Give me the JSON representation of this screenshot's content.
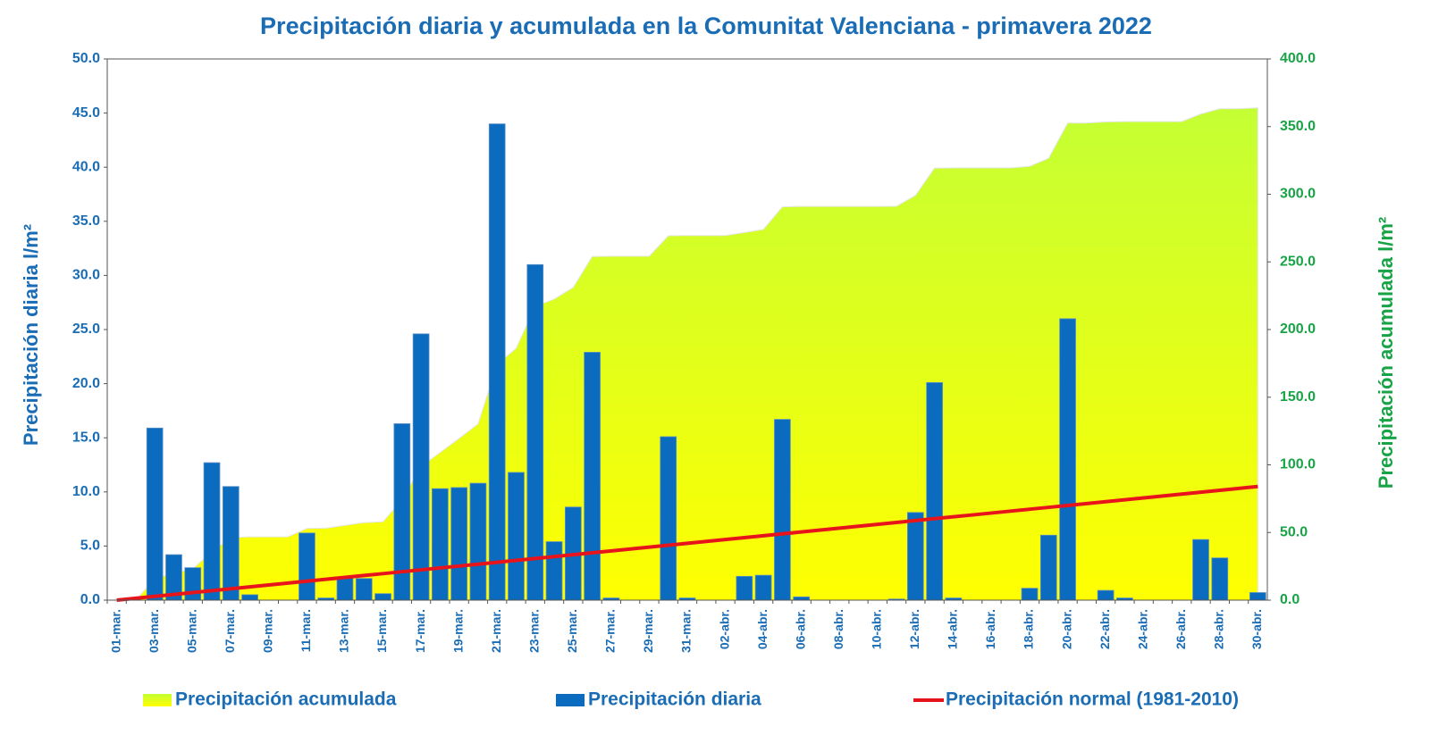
{
  "chart_data": {
    "type": "combo",
    "title": "Precipitación diaria y acumulada en la Comunitat Valenciana - primavera 2022",
    "y_label": "Precipitación  diaria l/m²",
    "y2_label": "Precipitación acumulada l/m²",
    "categories": [
      "01-mar.",
      null,
      "03-mar.",
      null,
      "05-mar.",
      null,
      "07-mar.",
      null,
      "09-mar.",
      null,
      "11-mar.",
      null,
      "13-mar.",
      null,
      "15-mar.",
      null,
      "17-mar.",
      null,
      "19-mar.",
      null,
      "21-mar.",
      null,
      "23-mar.",
      null,
      "25-mar.",
      null,
      "27-mar.",
      null,
      "29-mar.",
      null,
      "31-mar.",
      null,
      "02-abr.",
      null,
      "04-abr.",
      null,
      "06-abr.",
      null,
      "08-abr.",
      null,
      "10-abr.",
      null,
      "12-abr.",
      null,
      "14-abr.",
      null,
      "16-abr.",
      null,
      "18-abr.",
      null,
      "20-abr.",
      null,
      "22-abr.",
      null,
      "24-abr.",
      null,
      "26-abr.",
      null,
      "28-abr.",
      null,
      "30-abr."
    ],
    "series": [
      {
        "name": "Precipitación acumulada",
        "type": "area",
        "color": "#c4ff34",
        "axis": "y2",
        "values": [
          0,
          0,
          15.9,
          20.1,
          23.1,
          35.8,
          46.3,
          46.8,
          46.8,
          46.8,
          53,
          53.2,
          55.3,
          57.3,
          57.9,
          74.2,
          98.8,
          109.1,
          119.5,
          130.3,
          174.3,
          186.1,
          217.1,
          222.5,
          231.1,
          254,
          254.2,
          254.2,
          254.2,
          269.3,
          269.5,
          269.5,
          269.5,
          271.7,
          274,
          290.7,
          291,
          291,
          291,
          291,
          291,
          291.1,
          299.2,
          319.3,
          319.5,
          319.5,
          319.5,
          319.5,
          320.6,
          326.6,
          352.6,
          352.6,
          353.5,
          353.7,
          353.7,
          353.7,
          353.7,
          359.3,
          363.2,
          363.2,
          363.9
        ]
      },
      {
        "name": "Precipitación diaria",
        "type": "bar",
        "color": "#0b6cbf",
        "values": [
          0,
          0,
          15.9,
          4.2,
          3,
          12.7,
          10.5,
          0.5,
          0,
          0,
          6.2,
          0.2,
          2.1,
          2,
          0.6,
          16.3,
          24.6,
          10.3,
          10.4,
          10.8,
          44,
          11.8,
          31,
          5.4,
          8.6,
          22.9,
          0.2,
          0,
          0,
          15.1,
          0.2,
          0,
          0,
          2.2,
          2.3,
          16.7,
          0.3,
          0,
          0,
          0,
          0,
          0.1,
          8.1,
          20.1,
          0.2,
          0,
          0,
          0,
          1.1,
          6,
          26,
          0,
          0.9,
          0.2,
          0,
          0,
          0,
          5.6,
          3.9,
          0,
          0.7
        ]
      },
      {
        "name": "Precipitación normal (1981-2010)",
        "type": "line",
        "color": "#e8141c",
        "axis": "y2",
        "values": [
          0,
          1.4,
          2.8,
          4.2,
          5.6,
          7,
          8.4,
          9.8,
          11.2,
          12.6,
          14,
          15.4,
          16.8,
          18.2,
          19.6,
          21,
          22.4,
          23.8,
          25.2,
          26.6,
          28,
          29.4,
          30.8,
          32.2,
          33.6,
          35,
          36.4,
          37.8,
          39.2,
          40.6,
          42,
          43.4,
          44.8,
          46.2,
          47.6,
          49,
          50.4,
          51.8,
          53.2,
          54.6,
          56,
          57.4,
          58.8,
          60.2,
          61.6,
          63,
          64.4,
          65.8,
          67.2,
          68.6,
          70,
          71.4,
          72.8,
          74.2,
          75.6,
          77,
          78.4,
          79.8,
          81.2,
          82.6,
          84
        ]
      }
    ],
    "ylim": [
      0,
      50
    ],
    "yticks": [
      {
        "value": 0,
        "label": "0.0"
      },
      {
        "value": 5,
        "label": "5.0"
      },
      {
        "value": 10,
        "label": "10.0"
      },
      {
        "value": 15,
        "label": "15.0"
      },
      {
        "value": 20,
        "label": "20.0"
      },
      {
        "value": 25,
        "label": "25.0"
      },
      {
        "value": 30,
        "label": "30.0"
      },
      {
        "value": 35,
        "label": "35.0"
      },
      {
        "value": 40,
        "label": "40.0"
      },
      {
        "value": 45,
        "label": "45.0"
      },
      {
        "value": 50,
        "label": "50.0"
      }
    ],
    "y2lim": [
      0,
      400
    ],
    "y2ticks": [
      {
        "value": 0,
        "label": "0.0"
      },
      {
        "value": 50,
        "label": "50.0"
      },
      {
        "value": 100,
        "label": "100.0"
      },
      {
        "value": 150,
        "label": "150.0"
      },
      {
        "value": 200,
        "label": "200.0"
      },
      {
        "value": 250,
        "label": "250.0"
      },
      {
        "value": 300,
        "label": "300.0"
      },
      {
        "value": 350,
        "label": "350.0"
      },
      {
        "value": 400,
        "label": "400.0"
      }
    ],
    "legend": "bottom"
  }
}
